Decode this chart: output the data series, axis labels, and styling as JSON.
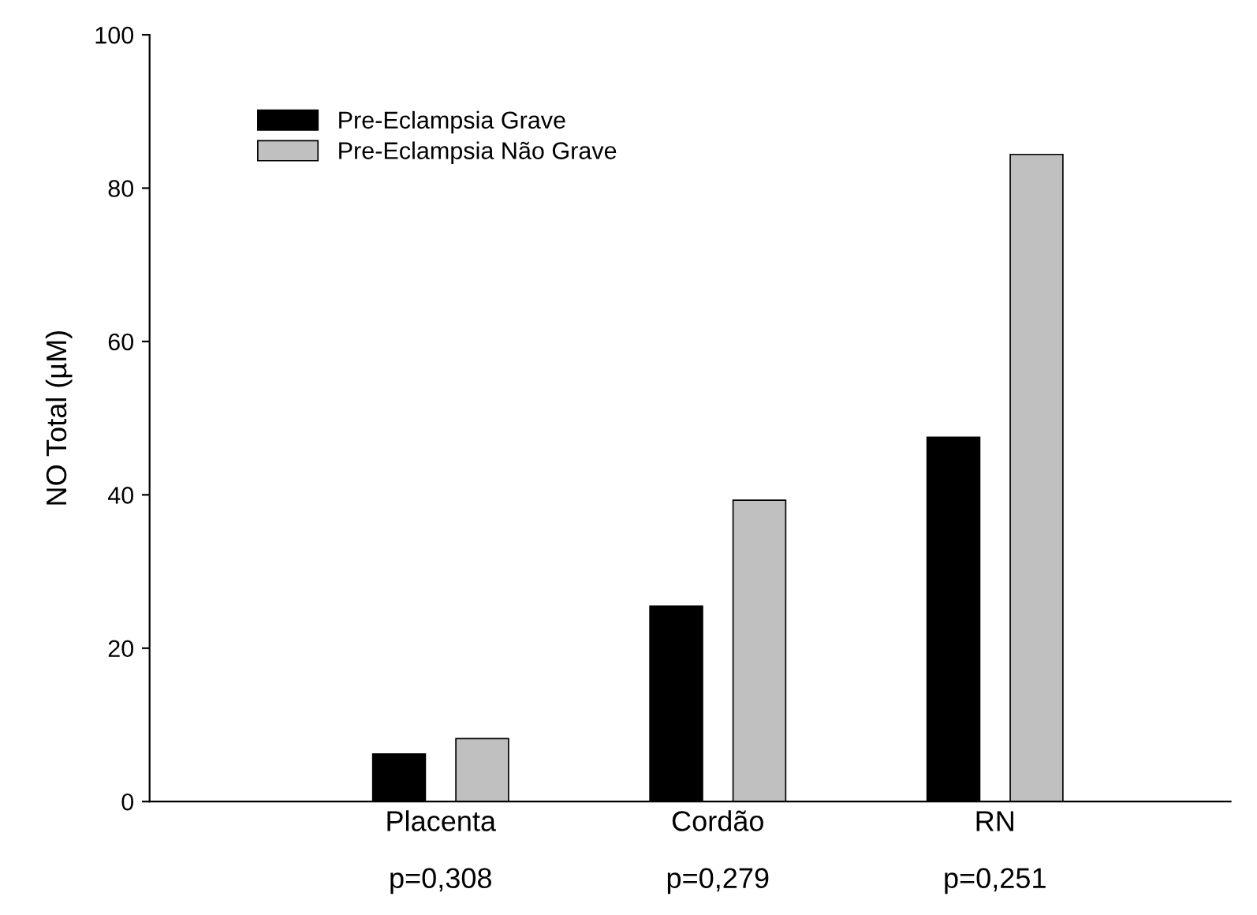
{
  "chart_data": {
    "type": "bar",
    "ylabel": "NO Total (µM)",
    "categories": [
      "Placenta",
      "Cordão",
      "RN"
    ],
    "series": [
      {
        "name": "Pre-Eclampsia Grave",
        "color": "#000000",
        "values": [
          6.2,
          25.5,
          47.5
        ]
      },
      {
        "name": "Pre-Eclampsia Não Grave",
        "color": "#c0c0c0",
        "values": [
          8.2,
          39.3,
          84.4
        ]
      }
    ],
    "annotations": [
      "p=0,308",
      "p=0,279",
      "p=0,251"
    ],
    "ylim": [
      0,
      100
    ],
    "yticks": [
      0,
      20,
      40,
      60,
      80,
      100
    ],
    "grid": false,
    "legend": "top left"
  }
}
